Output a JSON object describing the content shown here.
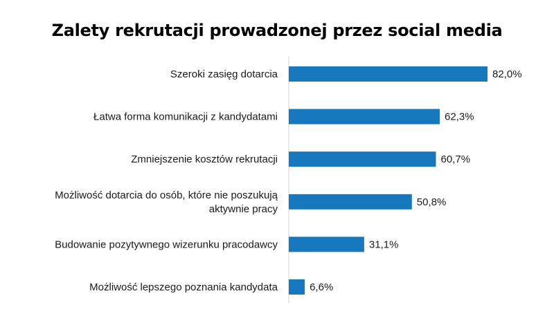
{
  "chart_data": {
    "type": "bar",
    "orientation": "horizontal",
    "title": "Zalety rekrutacji prowadzonej przez social media",
    "xlabel": "",
    "ylabel": "",
    "xlim": [
      0,
      100
    ],
    "grid": false,
    "bar_color": "#1878be",
    "categories": [
      [
        "Szeroki zasięg dotarcia"
      ],
      [
        "Łatwa forma komunikacji z kandydatami"
      ],
      [
        "Zmniejszenie kosztów rekrutacji"
      ],
      [
        "Możliwość dotarcia do osób, które nie poszukują",
        "aktywnie pracy"
      ],
      [
        "Budowanie pozytywnego wizerunku pracodawcy"
      ],
      [
        "Możliwość lepszego poznania kandydata"
      ]
    ],
    "values": [
      82.0,
      62.3,
      60.7,
      50.8,
      31.1,
      6.6
    ],
    "value_labels": [
      "82,0%",
      "62,3%",
      "60,7%",
      "50,8%",
      "31,1%",
      "6,6%"
    ]
  }
}
